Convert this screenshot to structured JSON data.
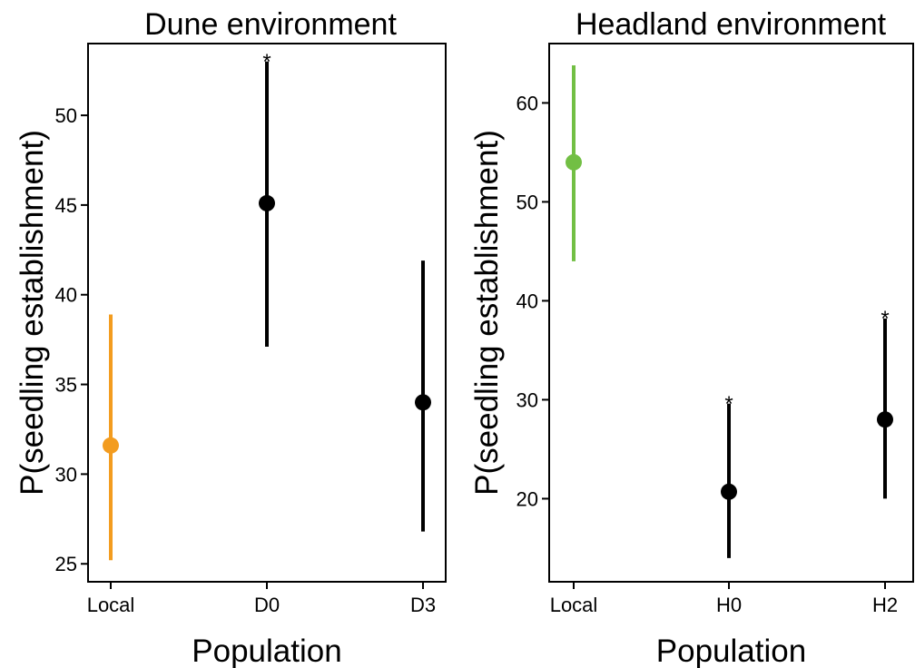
{
  "chart_data": [
    {
      "type": "scatter",
      "title": "Dune environment",
      "xlabel": "Population",
      "ylabel": "P(seedling establishment)",
      "categories": [
        "Local",
        "D0",
        "D3"
      ],
      "yticks": [
        25,
        30,
        35,
        40,
        45,
        50
      ],
      "ylim": [
        24,
        54
      ],
      "grid": false,
      "legend": "none",
      "points": [
        {
          "category": "Local",
          "y": 31.6,
          "lower": 25.2,
          "upper": 38.9,
          "color": "#F39C1F",
          "annotation": ""
        },
        {
          "category": "D0",
          "y": 45.1,
          "lower": 37.1,
          "upper": 53.0,
          "color": "#000000",
          "annotation": "*"
        },
        {
          "category": "D3",
          "y": 34.0,
          "lower": 26.8,
          "upper": 41.9,
          "color": "#000000",
          "annotation": ""
        }
      ]
    },
    {
      "type": "scatter",
      "title": "Headland environment",
      "xlabel": "Population",
      "ylabel": "P(seedling establishment)",
      "categories": [
        "Local",
        "H0",
        "H2"
      ],
      "yticks": [
        20,
        30,
        40,
        50,
        60
      ],
      "ylim": [
        11.6,
        66
      ],
      "grid": false,
      "legend": "none",
      "points": [
        {
          "category": "Local",
          "y": 54.0,
          "lower": 44.0,
          "upper": 63.8,
          "color": "#72BF44",
          "annotation": ""
        },
        {
          "category": "H0",
          "y": 20.7,
          "lower": 14.0,
          "upper": 29.6,
          "color": "#000000",
          "annotation": "*"
        },
        {
          "category": "H2",
          "y": 28.0,
          "lower": 20.0,
          "upper": 38.2,
          "color": "#000000",
          "annotation": "*"
        }
      ]
    }
  ]
}
